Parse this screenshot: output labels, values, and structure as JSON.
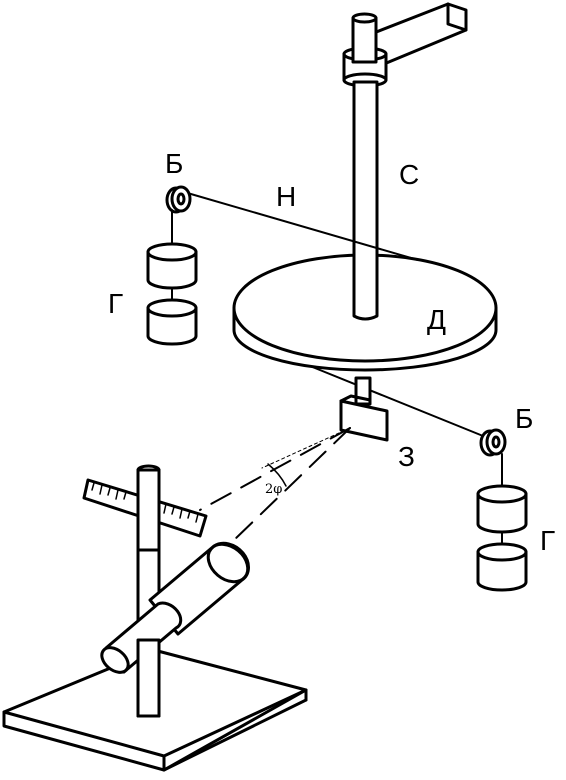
{
  "labels": {
    "b_top": "Б",
    "n": "Н",
    "c": "С",
    "g_left": "Г",
    "d": "Д",
    "z": "З",
    "b_right": "Б",
    "g_right": "Г",
    "angle": "2φ"
  },
  "colors": {
    "stroke": "#000000",
    "fill": "#ffffff"
  }
}
